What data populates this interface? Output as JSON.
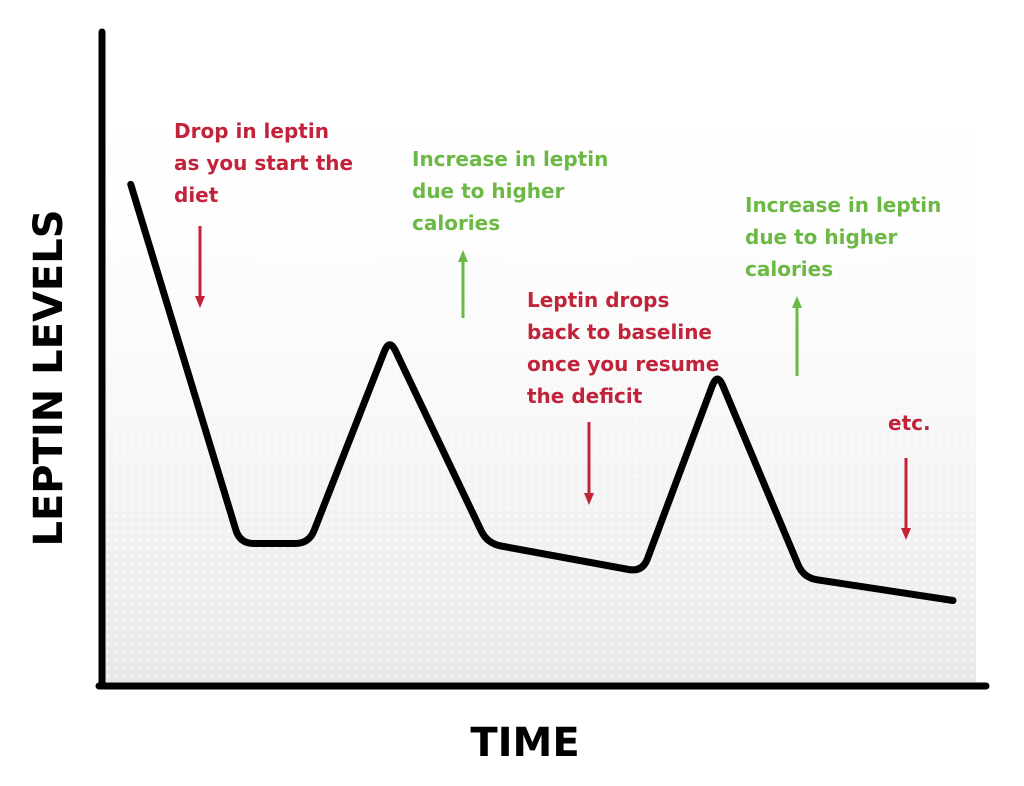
{
  "chart_data": {
    "type": "line",
    "title": "",
    "xlabel": "TIME",
    "ylabel": "LEPTIN LEVELS",
    "grid": false,
    "colors": {
      "line": "#000000",
      "axis": "#000000",
      "drop": "#c0233a",
      "increase": "#6cb845",
      "background_fade": "#e8e8e8"
    },
    "series": [
      {
        "points": [
          {
            "x": 5,
            "y": 88
          },
          {
            "x": 24,
            "y": 25
          },
          {
            "x": 36,
            "y": 25
          },
          {
            "x": 50,
            "y": 61
          },
          {
            "x": 67,
            "y": 25
          },
          {
            "x": 94,
            "y": 20
          },
          {
            "x": 107,
            "y": 55
          },
          {
            "x": 122,
            "y": 19
          },
          {
            "x": 148,
            "y": 15
          }
        ]
      }
    ],
    "annotations": [
      {
        "kind": "drop",
        "lines": [
          "Drop in leptin",
          "as you start the",
          "diet"
        ]
      },
      {
        "kind": "increase",
        "lines": [
          "Increase in leptin",
          "due to higher",
          "calories"
        ]
      },
      {
        "kind": "drop",
        "lines": [
          "Leptin drops",
          "back to baseline",
          "once you resume",
          "the deficit"
        ]
      },
      {
        "kind": "increase",
        "lines": [
          "Increase in leptin",
          "due to higher",
          "calories"
        ]
      },
      {
        "kind": "drop",
        "lines": [
          "etc."
        ]
      }
    ]
  }
}
